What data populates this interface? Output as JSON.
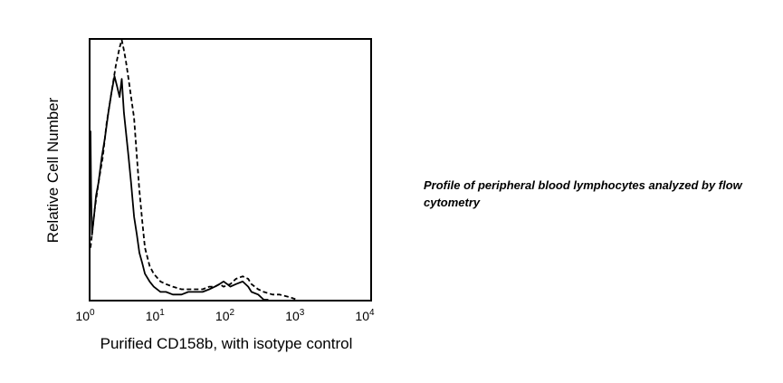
{
  "caption": "Profile of peripheral blood lymphocytes analyzed by flow cytometry",
  "chart_data": {
    "type": "line",
    "xlabel": "Purified CD158b, with isotype control",
    "ylabel": "Relative Cell Number",
    "x_scale": "log",
    "xlim": [
      1,
      10000
    ],
    "ylim": [
      0,
      1
    ],
    "x_ticks": [
      {
        "base": "10",
        "exp": "0",
        "value": 1
      },
      {
        "base": "10",
        "exp": "1",
        "value": 10
      },
      {
        "base": "10",
        "exp": "2",
        "value": 100
      },
      {
        "base": "10",
        "exp": "3",
        "value": 1000
      },
      {
        "base": "10",
        "exp": "4",
        "value": 10000
      }
    ],
    "grid": false,
    "series": [
      {
        "style": "solid",
        "color": "#000000",
        "x": [
          1.0,
          1.02,
          1.05,
          1.1,
          1.15,
          1.2,
          1.3,
          1.45,
          1.6,
          1.8,
          2.0,
          2.2,
          2.4,
          2.6,
          2.8,
          3.0,
          3.2,
          3.5,
          3.8,
          4.2,
          4.6,
          5.0,
          5.5,
          6.0,
          7.0,
          8.0,
          10.0,
          12.0,
          15.0,
          20.0,
          25.0,
          30.0,
          40.0,
          50.0,
          60.0,
          70.0,
          80.0,
          90.0,
          100.0,
          120.0,
          150.0,
          180.0,
          200.0,
          250.0,
          300.0,
          350.0
        ],
        "y": [
          0.65,
          0.4,
          0.25,
          0.3,
          0.35,
          0.4,
          0.45,
          0.55,
          0.62,
          0.72,
          0.8,
          0.86,
          0.82,
          0.78,
          0.85,
          0.72,
          0.65,
          0.55,
          0.45,
          0.32,
          0.25,
          0.18,
          0.14,
          0.1,
          0.07,
          0.05,
          0.03,
          0.03,
          0.02,
          0.02,
          0.03,
          0.03,
          0.03,
          0.04,
          0.05,
          0.06,
          0.07,
          0.06,
          0.05,
          0.06,
          0.07,
          0.05,
          0.03,
          0.02,
          0.0,
          0.0
        ]
      },
      {
        "style": "dashed",
        "color": "#000000",
        "x": [
          1.0,
          1.05,
          1.15,
          1.3,
          1.5,
          1.7,
          2.0,
          2.3,
          2.6,
          2.8,
          3.0,
          3.2,
          3.5,
          3.8,
          4.2,
          4.6,
          5.0,
          5.5,
          6.0,
          7.0,
          8.0,
          10.0,
          12.0,
          15.0,
          20.0,
          25.0,
          30.0,
          40.0,
          50.0,
          60.0,
          70.0,
          80.0,
          100.0,
          120.0,
          150.0,
          180.0,
          200.0,
          250.0,
          300.0,
          400.0,
          500.0,
          700.0,
          900.0
        ],
        "y": [
          0.2,
          0.25,
          0.35,
          0.45,
          0.55,
          0.68,
          0.8,
          0.9,
          0.97,
          1.0,
          0.96,
          0.92,
          0.85,
          0.78,
          0.7,
          0.55,
          0.42,
          0.3,
          0.2,
          0.13,
          0.1,
          0.07,
          0.06,
          0.05,
          0.04,
          0.04,
          0.04,
          0.04,
          0.05,
          0.05,
          0.06,
          0.05,
          0.06,
          0.08,
          0.09,
          0.08,
          0.06,
          0.04,
          0.03,
          0.02,
          0.02,
          0.01,
          0.0
        ]
      }
    ]
  }
}
